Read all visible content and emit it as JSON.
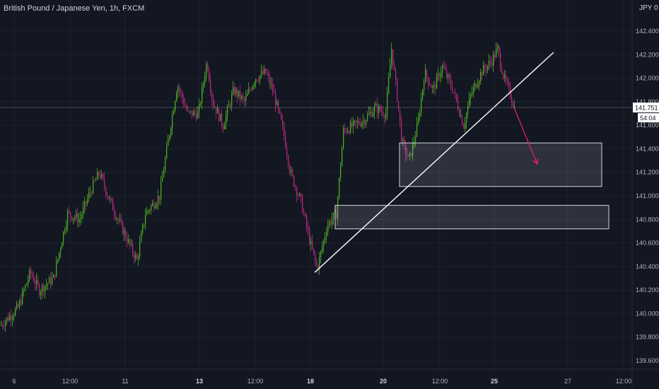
{
  "header": {
    "title": "British Pound / Japanese Yen, 1h, FXCM",
    "currency": "JPY 0"
  },
  "colors": {
    "background": "#131722",
    "grid": "#1e222d",
    "up_candle": "#4caf22",
    "down_candle": "#b5287e",
    "trendline": "#ffffff",
    "arrow": "#e91e63",
    "zone_border": "#d1d4dc",
    "axis_text": "#b2b5be"
  },
  "chart_data": {
    "type": "candlestick",
    "symbol": "British Pound / Japanese Yen",
    "interval": "1h",
    "exchange": "FXCM",
    "currency": "JPY",
    "y_axis": {
      "min": 139.5,
      "max": 142.5,
      "ticks": [
        "142.400",
        "142.200",
        "142.000",
        "141.800",
        "141.600",
        "141.400",
        "141.200",
        "141.000",
        "140.800",
        "140.600",
        "140.400",
        "140.200",
        "140.000",
        "139.800",
        "139.600"
      ]
    },
    "x_axis": {
      "ticks": [
        "6",
        "12:00",
        "11",
        "13",
        "12:00",
        "18",
        "20",
        "12:00",
        "25",
        "27",
        "12:00"
      ],
      "bold_ticks": [
        "13",
        "18",
        "20",
        "25"
      ]
    },
    "last_price": "141.751",
    "countdown": "54:04",
    "price_path": [
      [
        0,
        139.9
      ],
      [
        25,
        140.05
      ],
      [
        42,
        140.35
      ],
      [
        55,
        140.2
      ],
      [
        75,
        140.3
      ],
      [
        95,
        140.85
      ],
      [
        112,
        140.8
      ],
      [
        128,
        141.05
      ],
      [
        140,
        141.2
      ],
      [
        152,
        141.0
      ],
      [
        170,
        140.75
      ],
      [
        193,
        140.45
      ],
      [
        205,
        140.85
      ],
      [
        225,
        141.0
      ],
      [
        238,
        141.5
      ],
      [
        250,
        141.95
      ],
      [
        265,
        141.7
      ],
      [
        280,
        141.7
      ],
      [
        292,
        142.15
      ],
      [
        300,
        141.8
      ],
      [
        315,
        141.6
      ],
      [
        330,
        141.9
      ],
      [
        345,
        141.8
      ],
      [
        360,
        142.0
      ],
      [
        375,
        142.05
      ],
      [
        385,
        141.9
      ],
      [
        400,
        141.55
      ],
      [
        410,
        141.2
      ],
      [
        425,
        140.95
      ],
      [
        438,
        140.6
      ],
      [
        448,
        140.38
      ],
      [
        462,
        140.75
      ],
      [
        475,
        140.85
      ],
      [
        485,
        141.55
      ],
      [
        500,
        141.6
      ],
      [
        515,
        141.65
      ],
      [
        530,
        141.75
      ],
      [
        545,
        141.7
      ],
      [
        553,
        142.25
      ],
      [
        560,
        141.9
      ],
      [
        568,
        141.45
      ],
      [
        578,
        141.3
      ],
      [
        590,
        141.6
      ],
      [
        600,
        142.05
      ],
      [
        612,
        141.9
      ],
      [
        625,
        142.1
      ],
      [
        640,
        141.9
      ],
      [
        655,
        141.6
      ],
      [
        665,
        141.85
      ],
      [
        680,
        142.05
      ],
      [
        695,
        142.15
      ],
      [
        703,
        142.25
      ],
      [
        712,
        142.0
      ],
      [
        722,
        141.85
      ],
      [
        727,
        141.75
      ]
    ],
    "annotations": {
      "trendline": {
        "from": [
          445,
          140.35
        ],
        "to": [
          783,
          142.22
        ]
      },
      "arrow": {
        "from": [
          727,
          141.75
        ],
        "to": [
          760,
          141.27
        ]
      },
      "zones": [
        {
          "x0": 565,
          "x1": 851,
          "top": 141.45,
          "bottom": 141.08
        },
        {
          "x0": 474,
          "x1": 861,
          "top": 140.92,
          "bottom": 140.72
        }
      ]
    }
  }
}
